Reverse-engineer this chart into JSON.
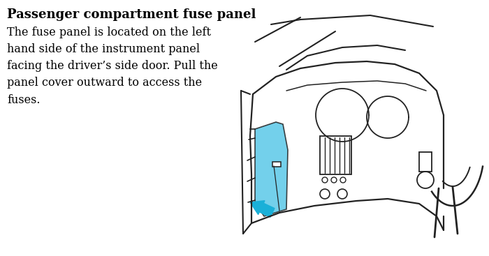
{
  "title": "Passenger compartment fuse panel",
  "body_text": "The fuse panel is located on the left\nhand side of the instrument panel\nfacing the driver’s side door. Pull the\npanel cover outward to access the\nfuses.",
  "bg_color": "#ffffff",
  "title_color": "#000000",
  "body_color": "#000000",
  "title_fontsize": 13,
  "body_fontsize": 11.5,
  "highlight_color": "#5bc8e8",
  "line_color": "#222222",
  "arrow_color": "#1ab0d8"
}
